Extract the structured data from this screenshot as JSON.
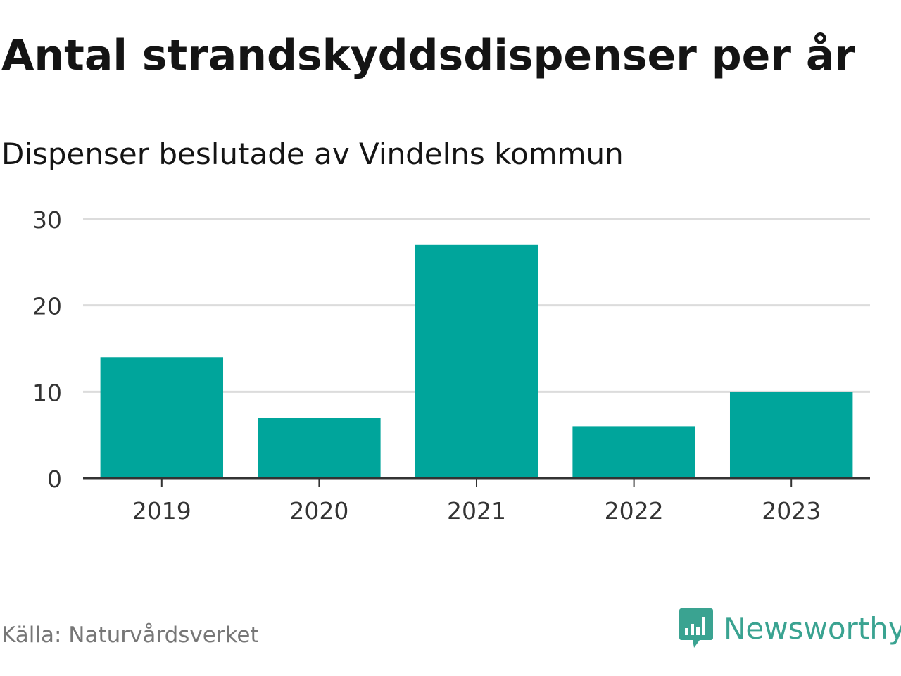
{
  "chart_data": {
    "type": "bar",
    "title": "Antal strandskyddsdispenser per år",
    "subtitle": "Dispenser beslutade av Vindelns kommun",
    "categories": [
      "2019",
      "2020",
      "2021",
      "2022",
      "2023"
    ],
    "values": [
      14,
      7,
      27,
      6,
      10
    ],
    "yticks": [
      "0",
      "10",
      "20",
      "30"
    ],
    "ylim": [
      0,
      30
    ],
    "xlabel": "",
    "ylabel": "",
    "bar_color": "#00a59b",
    "grid_color": "#dcdcdc",
    "axis_color": "#333333"
  },
  "footer": {
    "source": "Källa: Naturvårdsverket",
    "brand": "Newsworthy",
    "brand_color": "#3aa391"
  }
}
